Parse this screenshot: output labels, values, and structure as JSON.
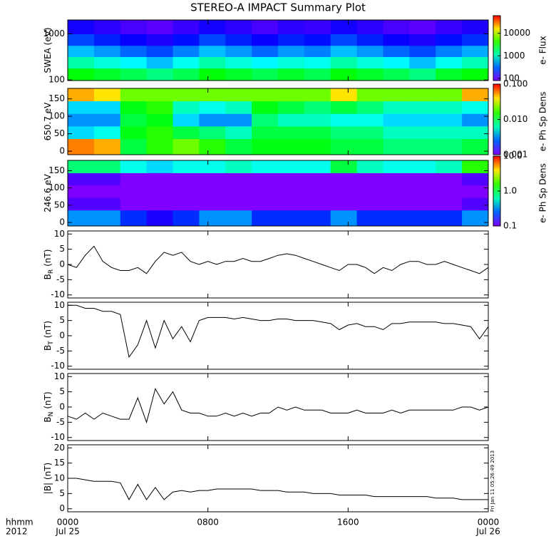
{
  "chart_data": [
    {
      "type": "heatmap",
      "title": "STEREO-A IMPACT Summary Plot",
      "ylabel": "SWEA (eV)",
      "ylog": true,
      "ylim": [
        97,
        2000
      ],
      "yticks": [
        100,
        1000
      ],
      "xlim": [
        0,
        24
      ],
      "x_bins": [
        0,
        1.5,
        3,
        4.5,
        6,
        7.5,
        9,
        10.5,
        12,
        13.5,
        15,
        16.5,
        18,
        19.5,
        21,
        22.5,
        24
      ],
      "y_bins": [
        97,
        180,
        320,
        560,
        1000,
        2000
      ],
      "z": [
        [
          3000,
          2500,
          2000,
          1500,
          2000,
          3000,
          2500,
          2000,
          2500,
          2000,
          3000,
          2500,
          2000,
          1500,
          2500,
          3000
        ],
        [
          1200,
          900,
          700,
          500,
          800,
          1200,
          900,
          700,
          900,
          800,
          1200,
          900,
          700,
          500,
          800,
          1100
        ],
        [
          500,
          400,
          300,
          250,
          350,
          500,
          400,
          300,
          400,
          350,
          500,
          400,
          300,
          250,
          350,
          450
        ],
        [
          250,
          200,
          160,
          140,
          180,
          250,
          200,
          160,
          200,
          180,
          250,
          200,
          160,
          140,
          180,
          220
        ],
        [
          150,
          130,
          110,
          100,
          120,
          150,
          130,
          110,
          130,
          120,
          150,
          130,
          110,
          100,
          120,
          140
        ]
      ],
      "zlog": true,
      "clim": [
        80,
        60000
      ],
      "cticks": [
        100,
        1000,
        10000
      ],
      "clabel": "e- Flux"
    },
    {
      "type": "heatmap",
      "ylabel": "650.7 eV",
      "ylim": [
        -10,
        180
      ],
      "yticks": [
        0,
        50,
        100,
        150
      ],
      "xlim": [
        0,
        24
      ],
      "x_bins": [
        0,
        1.5,
        3,
        4.5,
        6,
        7.5,
        9,
        10.5,
        12,
        13.5,
        15,
        16.5,
        18,
        19.5,
        21,
        22.5,
        24
      ],
      "y_bins": [
        -10,
        36,
        72,
        108,
        144,
        180
      ],
      "z": [
        [
          0.06,
          0.05,
          0.01,
          0.015,
          0.02,
          0.015,
          0.01,
          0.012,
          0.012,
          0.012,
          0.01,
          0.01,
          0.008,
          0.008,
          0.008,
          0.01
        ],
        [
          0.004,
          0.005,
          0.012,
          0.015,
          0.01,
          0.008,
          0.006,
          0.01,
          0.01,
          0.01,
          0.008,
          0.008,
          0.006,
          0.006,
          0.006,
          0.006
        ],
        [
          0.003,
          0.003,
          0.01,
          0.012,
          0.004,
          0.003,
          0.003,
          0.008,
          0.006,
          0.006,
          0.005,
          0.005,
          0.004,
          0.004,
          0.004,
          0.003
        ],
        [
          0.004,
          0.004,
          0.012,
          0.015,
          0.006,
          0.005,
          0.006,
          0.012,
          0.01,
          0.008,
          0.01,
          0.008,
          0.006,
          0.006,
          0.006,
          0.005
        ],
        [
          0.05,
          0.04,
          0.02,
          0.02,
          0.02,
          0.02,
          0.02,
          0.02,
          0.02,
          0.02,
          0.04,
          0.02,
          0.02,
          0.02,
          0.02,
          0.05
        ]
      ],
      "zlog": true,
      "clim": [
        0.001,
        0.1
      ],
      "cticks": [
        0.001,
        {
          "value": 0.01,
          "label": "0.010"
        },
        {
          "value": 0.1,
          "label": "0.100"
        }
      ],
      "clabel": "e- Ph Sp Dens"
    },
    {
      "type": "heatmap",
      "ylabel": "246.6 eV",
      "ylim": [
        -10,
        180
      ],
      "yticks": [
        0,
        50,
        100,
        150
      ],
      "xlim": [
        0,
        24
      ],
      "x_bins": [
        0,
        1.5,
        3,
        4.5,
        6,
        7.5,
        9,
        10.5,
        12,
        13.5,
        15,
        16.5,
        18,
        19.5,
        21,
        22.5,
        24
      ],
      "y_bins": [
        -10,
        36,
        72,
        108,
        144,
        180
      ],
      "z": [
        [
          0.3,
          0.3,
          0.2,
          0.15,
          0.2,
          0.3,
          0.3,
          0.2,
          0.2,
          0.2,
          0.3,
          0.2,
          0.2,
          0.2,
          0.2,
          0.3
        ],
        [
          0.12,
          0.12,
          0.1,
          0.1,
          0.1,
          0.1,
          0.1,
          0.1,
          0.1,
          0.1,
          0.1,
          0.1,
          0.1,
          0.1,
          0.1,
          0.12
        ],
        [
          0.1,
          0.1,
          0.1,
          0.1,
          0.1,
          0.1,
          0.1,
          0.1,
          0.1,
          0.1,
          0.1,
          0.1,
          0.1,
          0.1,
          0.1,
          0.1
        ],
        [
          0.12,
          0.12,
          0.1,
          0.1,
          0.1,
          0.1,
          0.1,
          0.1,
          0.1,
          0.1,
          0.1,
          0.1,
          0.1,
          0.1,
          0.1,
          0.12
        ],
        [
          0.8,
          0.8,
          0.5,
          0.4,
          0.5,
          0.5,
          0.6,
          0.5,
          0.5,
          0.5,
          1,
          0.6,
          0.5,
          0.5,
          0.6,
          1.5
        ]
      ],
      "zlog": true,
      "clim": [
        0.1,
        10
      ],
      "cticks": [
        0.1,
        {
          "value": 1,
          "label": "1.0"
        },
        {
          "value": 10,
          "label": "10.0"
        }
      ],
      "clabel": "e- Ph Sp Dens"
    },
    {
      "type": "line",
      "ylabel": "B",
      "ylabel_sub": "R",
      "ylabel_unit": "(nT)",
      "ylim": [
        -11,
        11
      ],
      "yticks": [
        -10,
        -5,
        0,
        5,
        10
      ],
      "xlim": [
        0,
        24
      ],
      "color": "#000000",
      "x": [
        0,
        0.5,
        1,
        1.5,
        2,
        2.5,
        3,
        3.5,
        4,
        4.5,
        5,
        5.5,
        6,
        6.5,
        7,
        7.5,
        8,
        8.5,
        9,
        9.5,
        10,
        10.5,
        11,
        11.5,
        12,
        12.5,
        13,
        13.5,
        14,
        14.5,
        15,
        15.5,
        16,
        16.5,
        17,
        17.5,
        18,
        18.5,
        19,
        19.5,
        20,
        20.5,
        21,
        21.5,
        22,
        22.5,
        23,
        23.5,
        24
      ],
      "values": [
        0,
        -1,
        3,
        6,
        1,
        -1,
        -2,
        -2,
        -1,
        -3,
        1,
        4,
        3,
        4,
        1,
        0,
        1,
        0,
        1,
        1,
        2,
        1,
        1,
        2,
        3,
        3.5,
        3,
        2,
        1,
        0,
        -1,
        -2,
        0,
        0,
        -1,
        -3,
        -1,
        -2,
        0,
        1,
        1,
        0,
        0,
        1,
        0,
        -1,
        -2,
        -3,
        -1
      ]
    },
    {
      "type": "line",
      "ylabel": "B",
      "ylabel_sub": "T",
      "ylabel_unit": "(nT)",
      "ylim": [
        -11,
        11
      ],
      "yticks": [
        -10,
        -5,
        0,
        5,
        10
      ],
      "xlim": [
        0,
        24
      ],
      "color": "#000000",
      "x": [
        0,
        0.5,
        1,
        1.5,
        2,
        2.5,
        3,
        3.5,
        4,
        4.5,
        5,
        5.5,
        6,
        6.5,
        7,
        7.5,
        8,
        8.5,
        9,
        9.5,
        10,
        10.5,
        11,
        11.5,
        12,
        12.5,
        13,
        13.5,
        14,
        14.5,
        15,
        15.5,
        16,
        16.5,
        17,
        17.5,
        18,
        18.5,
        19,
        19.5,
        20,
        20.5,
        21,
        21.5,
        22,
        22.5,
        23,
        23.5,
        24
      ],
      "values": [
        10,
        10,
        9,
        9,
        8,
        8,
        7,
        -7,
        -3,
        5,
        -4,
        5,
        -1,
        3,
        -2,
        5,
        6,
        6,
        6,
        5.5,
        6,
        5.5,
        5,
        5,
        5.5,
        5.5,
        5,
        5,
        5,
        4.5,
        4,
        2,
        3.5,
        4,
        3,
        3,
        2,
        4,
        4,
        4.5,
        4.5,
        4.5,
        4.5,
        4,
        4,
        3.5,
        3,
        -1,
        3
      ]
    },
    {
      "type": "line",
      "ylabel": "B",
      "ylabel_sub": "N",
      "ylabel_unit": "(nT)",
      "ylim": [
        -11,
        11
      ],
      "yticks": [
        -10,
        -5,
        0,
        5,
        10
      ],
      "xlim": [
        0,
        24
      ],
      "color": "#000000",
      "x": [
        0,
        0.5,
        1,
        1.5,
        2,
        2.5,
        3,
        3.5,
        4,
        4.5,
        5,
        5.5,
        6,
        6.5,
        7,
        7.5,
        8,
        8.5,
        9,
        9.5,
        10,
        10.5,
        11,
        11.5,
        12,
        12.5,
        13,
        13.5,
        14,
        14.5,
        15,
        15.5,
        16,
        16.5,
        17,
        17.5,
        18,
        18.5,
        19,
        19.5,
        20,
        20.5,
        21,
        21.5,
        22,
        22.5,
        23,
        23.5,
        24
      ],
      "values": [
        -3,
        -4,
        -2,
        -4,
        -2,
        -3,
        -4,
        -4,
        3,
        -5,
        6,
        1,
        5,
        -1,
        -2,
        -2,
        -3,
        -3,
        -2,
        -3,
        -2,
        -3,
        -2,
        -2,
        0,
        -1,
        0,
        -1,
        -1,
        -1,
        -2,
        -2,
        -2,
        -1,
        -2,
        -2,
        -2,
        -1,
        -2,
        -1,
        -1,
        -1,
        -1,
        -1,
        -1,
        0,
        0,
        -1,
        0
      ]
    },
    {
      "type": "line",
      "ylabel": "|B| (nT)",
      "ylim": [
        -1,
        21
      ],
      "yticks": [
        0,
        5,
        10,
        15,
        20
      ],
      "xlim": [
        0,
        24
      ],
      "color": "#000000",
      "x": [
        0,
        0.5,
        1,
        1.5,
        2,
        2.5,
        3,
        3.5,
        4,
        4.5,
        5,
        5.5,
        6,
        6.5,
        7,
        7.5,
        8,
        8.5,
        9,
        9.5,
        10,
        10.5,
        11,
        11.5,
        12,
        12.5,
        13,
        13.5,
        14,
        14.5,
        15,
        15.5,
        16,
        16.5,
        17,
        17.5,
        18,
        18.5,
        19,
        19.5,
        20,
        20.5,
        21,
        21.5,
        22,
        22.5,
        23,
        23.5,
        24
      ],
      "values": [
        10,
        10,
        9.5,
        9,
        9,
        9,
        8.5,
        3,
        8,
        3,
        7,
        3,
        5.5,
        6,
        5.5,
        6,
        6,
        6.5,
        6.5,
        6.5,
        6.5,
        6.5,
        6,
        6,
        6,
        5.5,
        5.5,
        5.5,
        5,
        5,
        5,
        4.5,
        4.5,
        4.5,
        4.5,
        4,
        4,
        4,
        4,
        4,
        4,
        4,
        3.5,
        3.5,
        3.5,
        3,
        3,
        3,
        3
      ],
      "xticks": [
        {
          "value": 0,
          "label": "0000"
        },
        {
          "value": 8,
          "label": "0800"
        },
        {
          "value": 16,
          "label": "1600"
        },
        {
          "value": 24,
          "label": "0000"
        }
      ],
      "date_labels": [
        {
          "value": 0,
          "label": "Jul 25"
        },
        {
          "value": 24,
          "label": "Jul 26"
        }
      ],
      "xlabel": "hhmm",
      "year_label": "2012",
      "timestamp": "Fri Jan 11 05:26:49 2013"
    }
  ]
}
